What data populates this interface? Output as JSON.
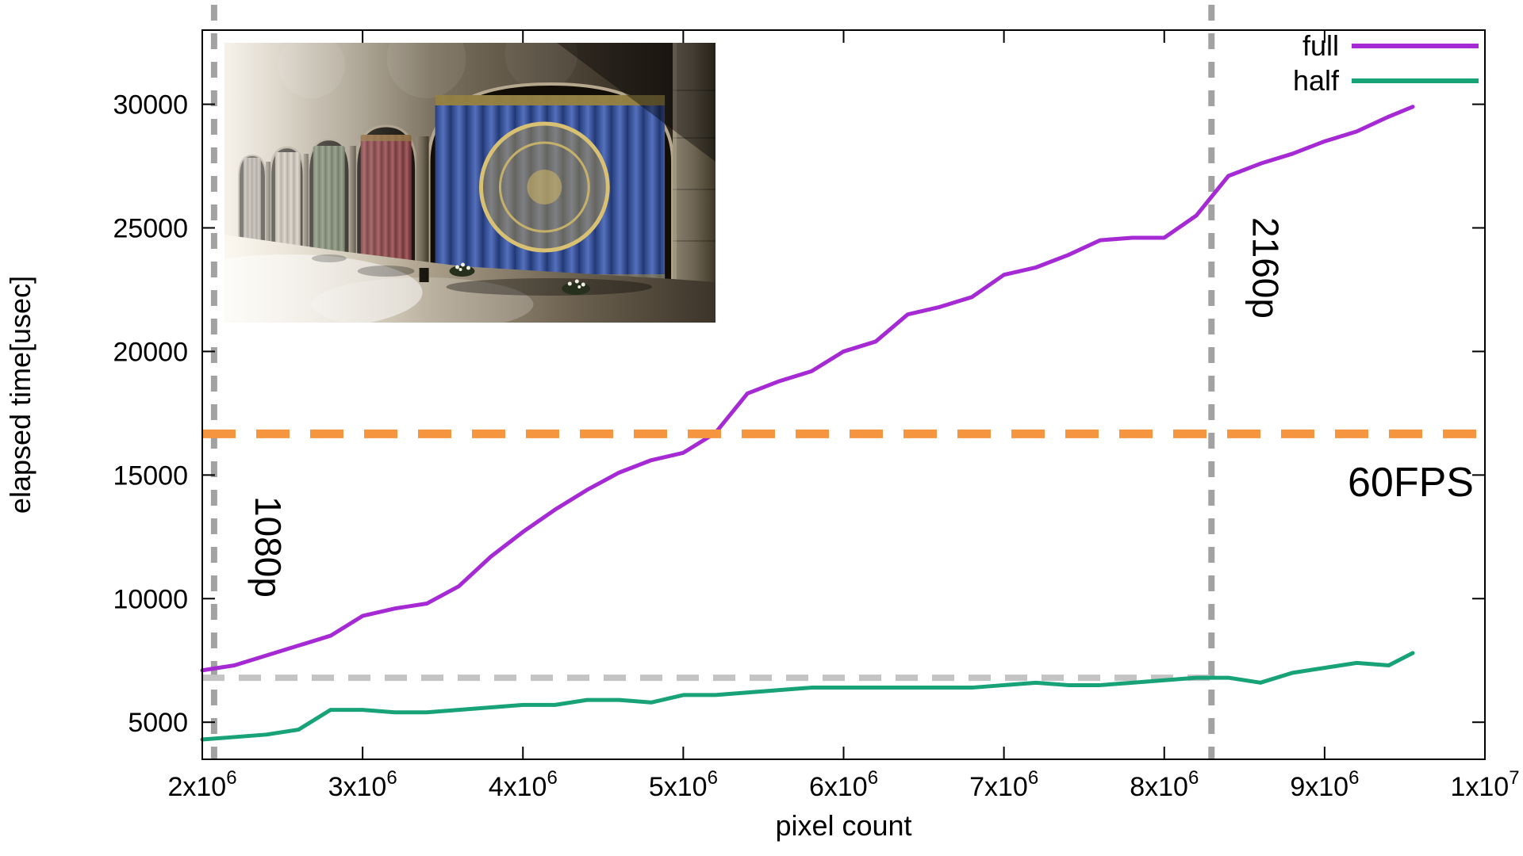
{
  "chart_data": {
    "type": "line",
    "title": "",
    "xlabel": "pixel count",
    "ylabel": "elapsed time[usec]",
    "xlim": [
      2000000,
      10000000
    ],
    "ylim": [
      3500,
      33000
    ],
    "xticks": [
      2000000,
      3000000,
      4000000,
      5000000,
      6000000,
      7000000,
      8000000,
      9000000,
      10000000
    ],
    "yticks": [
      5000,
      10000,
      15000,
      20000,
      25000,
      30000
    ],
    "grid": false,
    "legend_position": "top-right",
    "x": [
      2000000,
      2200000,
      2400000,
      2600000,
      2800000,
      3000000,
      3200000,
      3400000,
      3600000,
      3800000,
      4000000,
      4200000,
      4400000,
      4600000,
      4800000,
      5000000,
      5200000,
      5400000,
      5600000,
      5800000,
      6000000,
      6200000,
      6400000,
      6600000,
      6800000,
      7000000,
      7200000,
      7400000,
      7600000,
      7800000,
      8000000,
      8200000,
      8400000,
      8600000,
      8800000,
      9000000,
      9200000,
      9400000,
      9550000
    ],
    "series": [
      {
        "name": "full",
        "color": "#a52ad4",
        "values": [
          7100,
          7300,
          7700,
          8100,
          8500,
          9300,
          9600,
          9800,
          10500,
          11700,
          12700,
          13600,
          14400,
          15100,
          15600,
          15900,
          16700,
          18300,
          18800,
          19200,
          20000,
          20400,
          21500,
          21800,
          22200,
          23100,
          23400,
          23900,
          24500,
          24600,
          24600,
          25500,
          27100,
          27600,
          28000,
          28500,
          28900,
          29500,
          29900
        ]
      },
      {
        "name": "half",
        "color": "#17a277",
        "values": [
          4300,
          4400,
          4500,
          4700,
          5500,
          5500,
          5400,
          5400,
          5500,
          5600,
          5700,
          5700,
          5900,
          5900,
          5800,
          6100,
          6100,
          6200,
          6300,
          6400,
          6400,
          6400,
          6400,
          6400,
          6400,
          6500,
          6600,
          6500,
          6500,
          6600,
          6700,
          6800,
          6800,
          6600,
          7000,
          7200,
          7400,
          7300,
          7800
        ]
      }
    ],
    "reference_lines": [
      {
        "id": "ref-1080p",
        "orientation": "vertical",
        "value": 2073600,
        "label": "1080p",
        "color": "#a2a2a2",
        "style": "dashed"
      },
      {
        "id": "ref-2160p",
        "orientation": "vertical",
        "value": 8294400,
        "label": "2160p",
        "color": "#a2a2a2",
        "style": "dashed"
      },
      {
        "id": "ref-half-2160p",
        "orientation": "horizontal",
        "value": 6800,
        "label": "",
        "color": "#c4c4c4",
        "style": "dashed",
        "x_max": 8294400
      },
      {
        "id": "ref-60fps",
        "orientation": "horizontal",
        "value": 16667,
        "label": "60FPS",
        "color": "#f5953f",
        "style": "dashed"
      }
    ]
  }
}
